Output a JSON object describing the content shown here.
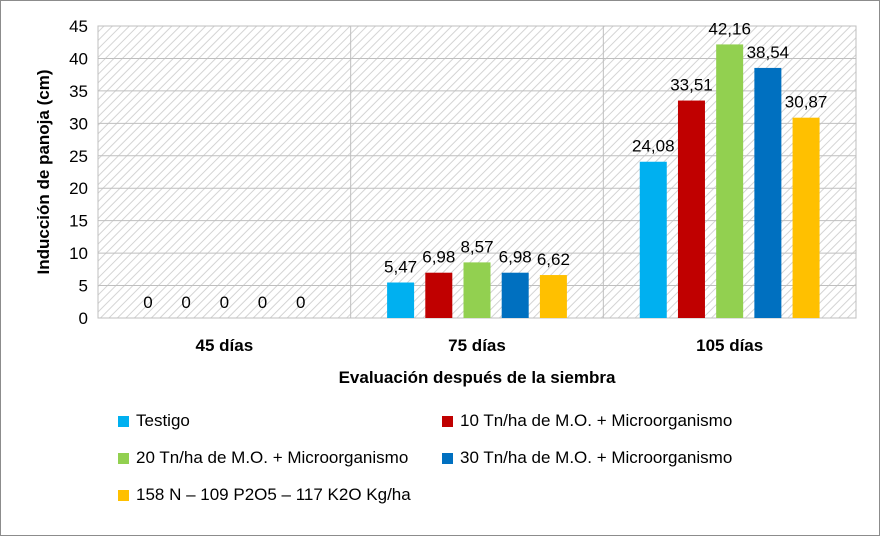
{
  "chart_data": {
    "type": "bar",
    "categories": [
      "45 días",
      "75 días",
      "105 días"
    ],
    "series": [
      {
        "name": "Testigo",
        "color": "#00B0F0",
        "values": [
          0,
          5.47,
          24.08
        ],
        "labels": [
          "0",
          "5,47",
          "24,08"
        ]
      },
      {
        "name": "10 Tn/ha de M.O. + Microorganismo",
        "color": "#C00000",
        "values": [
          0,
          6.98,
          33.51
        ],
        "labels": [
          "0",
          "6,98",
          "33,51"
        ]
      },
      {
        "name": "20 Tn/ha de M.O. + Microorganismo",
        "color": "#92D050",
        "values": [
          0,
          8.57,
          42.16
        ],
        "labels": [
          "0",
          "8,57",
          "42,16"
        ]
      },
      {
        "name": "30 Tn/ha de M.O. + Microorganismo",
        "color": "#0070C0",
        "values": [
          0,
          6.98,
          38.54
        ],
        "labels": [
          "0",
          "6,98",
          "38,54"
        ]
      },
      {
        "name": "158 N – 109 P2O5 – 117 K2O Kg/ha",
        "color": "#FFC000",
        "values": [
          0,
          6.62,
          30.87
        ],
        "labels": [
          "0",
          "6,62",
          "30,87"
        ]
      }
    ],
    "xlabel": "Evaluación después de la siembra",
    "ylabel": "Inducción de panoja (cm)",
    "ylim": [
      0,
      45
    ],
    "yticks": [
      0,
      5,
      10,
      15,
      20,
      25,
      30,
      35,
      40,
      45
    ],
    "grid": true,
    "legend_position": "bottom"
  }
}
